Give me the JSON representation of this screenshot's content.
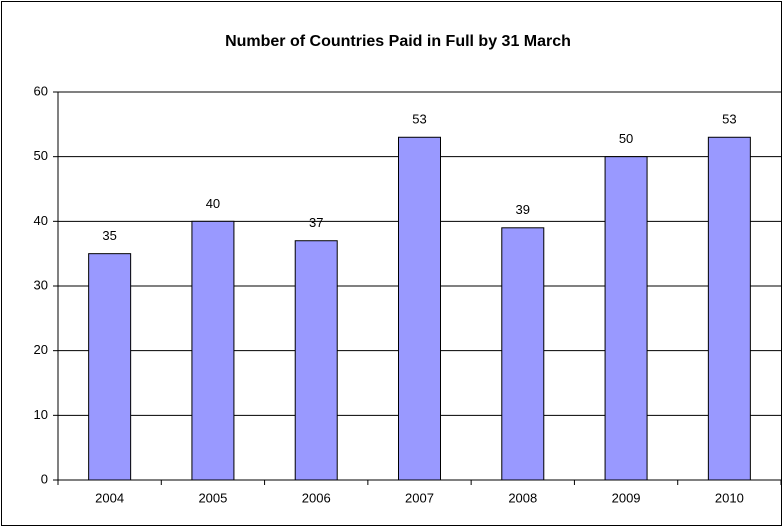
{
  "chart_data": {
    "type": "bar",
    "title": "Number of Countries Paid in Full by 31 March",
    "categories": [
      "2004",
      "2005",
      "2006",
      "2007",
      "2008",
      "2009",
      "2010"
    ],
    "values": [
      35,
      40,
      37,
      53,
      39,
      50,
      53
    ],
    "color": "#9999ff",
    "ylim": [
      0,
      60
    ],
    "yticks": [
      0,
      10,
      20,
      30,
      40,
      50,
      60
    ],
    "grid": true
  }
}
